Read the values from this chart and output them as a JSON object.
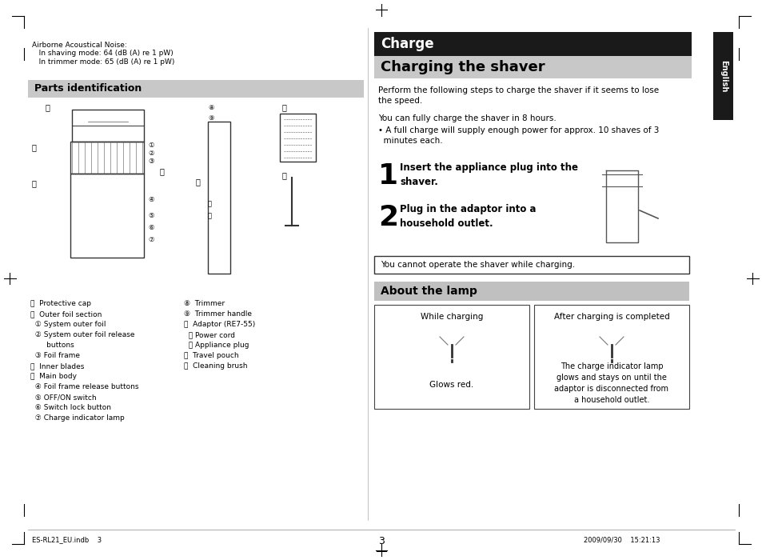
{
  "bg_color": "#ffffff",
  "page_bg": "#ffffff",
  "left_panel": {
    "noise_text": "Airborne Acoustical Noise:\n   In shaving mode: 64 (dB (A) re 1 pW)\n   In trimmer mode: 65 (dB (A) re 1 pW)",
    "parts_header": "Parts identification",
    "parts_header_bg": "#c8c8c8",
    "labels_left": [
      "Ⓐ  Protective cap",
      "Ⓑ  Outer foil section",
      "   ①  System outer foil",
      "   ②  System outer foil release\n          buttons",
      "   ③  Foil frame",
      "Ⓒ  Inner blades",
      "Ⓓ  Main body",
      "   ④  Foil frame release buttons",
      "   ⑤  OFF/ON switch",
      "   ⑥  Switch lock button",
      "   ⑦  Charge indicator lamp"
    ],
    "labels_right": [
      "⑧  Trimmer",
      "⑨  Trimmer handle",
      "Ⓔ  Adaptor (RE7-55)",
      "   ⑪  Power cord",
      "   ⑫  Appliance plug",
      "Ⓕ  Travel pouch",
      "Ⓖ  Cleaning brush"
    ]
  },
  "right_panel": {
    "charge_header_bg": "#1a1a1a",
    "charge_header_text": "Charge",
    "charge_header_text_color": "#ffffff",
    "english_tab_bg": "#1a1a1a",
    "english_tab_text": "English",
    "subheader_bg": "#c8c8c8",
    "subheader_text": "Charging the shaver",
    "body_text_1": "Perform the following steps to charge the shaver if it seems to lose\nthe speed.",
    "body_text_2": "You can fully charge the shaver in 8 hours.",
    "body_text_3": "• A full charge will supply enough power for approx. 10 shaves of 3\n  minutes each.",
    "step1_num": "1",
    "step1_text": "Insert the appliance plug into the\nshaver.",
    "step2_num": "2",
    "step2_text": "Plug in the adaptor into a\nhousehold outlet.",
    "warning_box_text": "You cannot operate the shaver while charging.",
    "warning_box_border": "#555555",
    "lamp_header_bg": "#c0c0c0",
    "lamp_header_text": "About the lamp",
    "lamp_box1_title": "While charging",
    "lamp_box1_body": "Glows red.",
    "lamp_box2_title": "After charging is completed",
    "lamp_box2_body": "The charge indicator lamp\nglows and stays on until the\nadaptor is disconnected from\na household outlet."
  },
  "footer_text_left": "ES-RL21_EU.indb    3",
  "footer_text_right": "2009/09/30    15:21:13",
  "page_number": "3"
}
